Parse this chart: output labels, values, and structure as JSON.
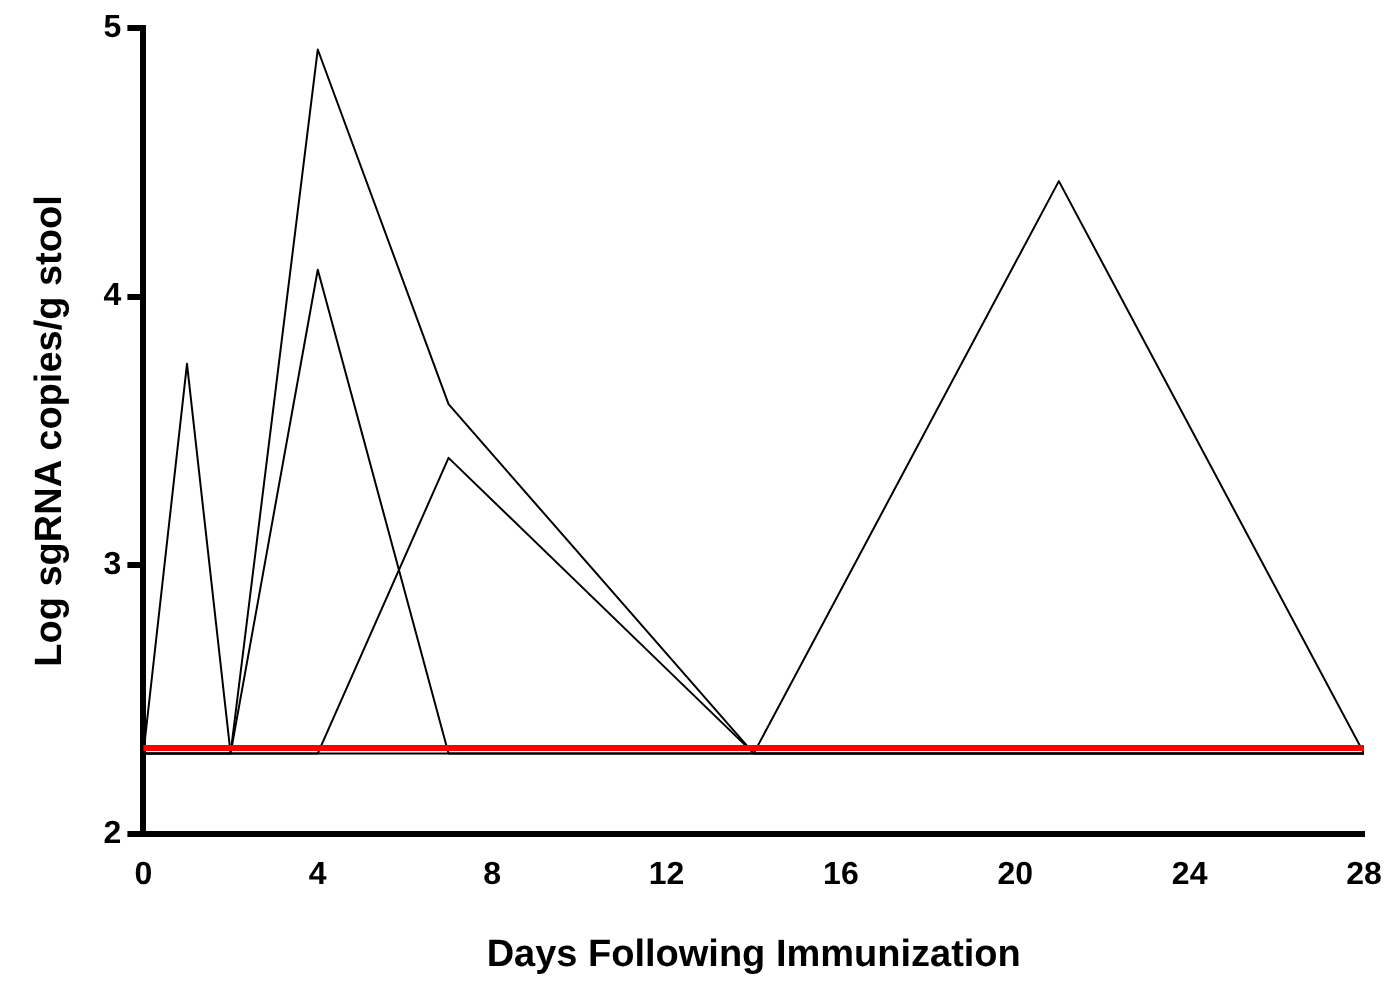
{
  "chart_data": {
    "type": "line",
    "xlabel": "Days Following Immunization",
    "ylabel": "Log sgRNA copies/g stool",
    "x": [
      0,
      1,
      2,
      4,
      7,
      14,
      21,
      28
    ],
    "series": [
      {
        "color": "#000000",
        "values": [
          2.3,
          3.75,
          2.3,
          4.1,
          2.3,
          2.3,
          2.3,
          2.3
        ]
      },
      {
        "color": "#000000",
        "values": [
          2.3,
          2.3,
          2.3,
          4.92,
          3.6,
          2.3,
          2.3,
          2.3
        ]
      },
      {
        "color": "#000000",
        "values": [
          2.3,
          2.3,
          2.3,
          2.3,
          3.4,
          2.3,
          2.3,
          2.3
        ]
      },
      {
        "color": "#000000",
        "values": [
          2.3,
          2.3,
          2.3,
          2.3,
          2.3,
          2.3,
          4.43,
          2.3
        ]
      }
    ],
    "xlim": [
      0,
      28
    ],
    "xticks": [
      0,
      4,
      8,
      12,
      16,
      20,
      24,
      28
    ],
    "ylim": [
      2,
      5
    ],
    "yticks": [
      2,
      3,
      4,
      5
    ],
    "ref_lines": [
      {
        "axis": "y",
        "value": 2.32,
        "color": "#ff0000"
      }
    ],
    "grid": false,
    "legend": false,
    "marker": "none",
    "line_style": "solid"
  }
}
